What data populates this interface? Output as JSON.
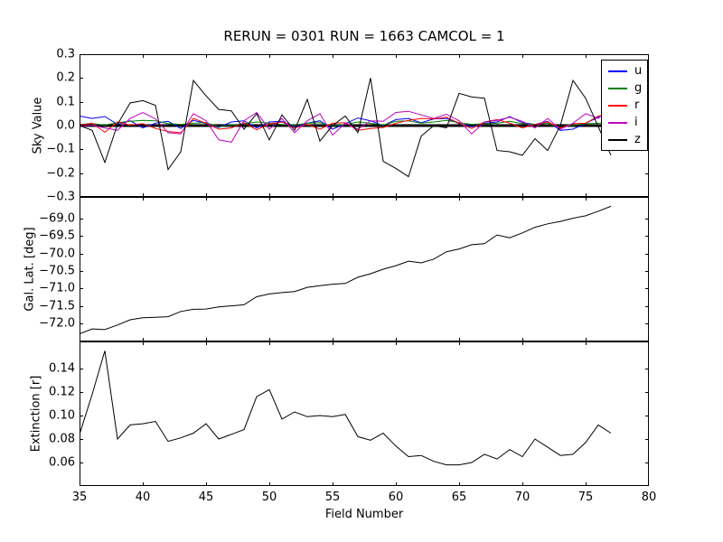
{
  "chart_data": {
    "type": "line",
    "title": "RERUN = 0301 RUN = 1663 CAMCOL = 1",
    "xlabel": "Field Number",
    "xlim": [
      35,
      80
    ],
    "x_ticks": [
      35,
      40,
      45,
      50,
      55,
      60,
      65,
      70,
      75,
      80
    ],
    "grid": false,
    "x": [
      35,
      36,
      37,
      38,
      39,
      40,
      41,
      42,
      43,
      44,
      45,
      46,
      47,
      48,
      49,
      50,
      51,
      52,
      53,
      54,
      55,
      56,
      57,
      58,
      59,
      60,
      61,
      62,
      63,
      64,
      65,
      66,
      67,
      68,
      69,
      70,
      71,
      72,
      73,
      74,
      75,
      76,
      77
    ],
    "panels": [
      {
        "id": "sky",
        "ylabel": "Sky Value",
        "ylim": [
          -0.3,
          0.3
        ],
        "yticks": [
          0.3,
          0.2,
          0.1,
          0.0,
          -0.1,
          -0.2,
          -0.3
        ],
        "ytick_decimals": 1,
        "legend_position": "upper right",
        "axhline": {
          "y": 0,
          "x_start": 35,
          "x_end": 77,
          "color": "#000000",
          "linewidth": 3
        },
        "series": [
          {
            "name": "u",
            "color": "#0000ff",
            "values": [
              0.04,
              0.03,
              0.038,
              0.005,
              0.02,
              -0.01,
              0.01,
              0.018,
              -0.012,
              0.022,
              0.008,
              -0.008,
              0.015,
              0.02,
              -0.01,
              0.015,
              0.018,
              -0.005,
              0.01,
              0.02,
              -0.015,
              0.008,
              0.032,
              0.02,
              0.0,
              0.025,
              0.03,
              0.012,
              0.028,
              0.03,
              0.008,
              -0.005,
              0.01,
              0.015,
              0.038,
              0.012,
              0.005,
              0.018,
              -0.02,
              -0.015,
              0.01,
              0.035,
              0.06
            ]
          },
          {
            "name": "g",
            "color": "#008000",
            "values": [
              0.005,
              0.008,
              0.002,
              0.012,
              0.018,
              0.022,
              0.02,
              0.008,
              0.005,
              0.01,
              0.012,
              -0.005,
              0.002,
              0.008,
              0.015,
              0.01,
              0.005,
              0.002,
              0.01,
              0.012,
              -0.002,
              0.005,
              0.015,
              0.01,
              0.002,
              0.018,
              0.02,
              0.01,
              0.015,
              0.022,
              0.012,
              0.005,
              0.008,
              0.01,
              0.018,
              0.008,
              0.004,
              0.01,
              -0.008,
              0.002,
              0.008,
              0.01,
              0.012
            ]
          },
          {
            "name": "r",
            "color": "#ff0000",
            "values": [
              0.003,
              0.01,
              -0.028,
              0.015,
              0.002,
              0.008,
              -0.012,
              -0.025,
              -0.03,
              0.03,
              0.01,
              -0.015,
              -0.01,
              0.012,
              -0.018,
              0.008,
              0.015,
              -0.01,
              0.005,
              -0.015,
              0.01,
              0.012,
              -0.02,
              -0.012,
              -0.008,
              0.01,
              0.022,
              0.03,
              0.028,
              0.035,
              0.01,
              -0.012,
              0.015,
              0.025,
              0.01,
              -0.01,
              0.005,
              0.015,
              -0.01,
              0.008,
              0.01,
              0.04,
              0.045
            ]
          },
          {
            "name": "i",
            "color": "#bf00bf",
            "values": [
              -0.005,
              0.002,
              -0.01,
              -0.02,
              0.03,
              0.055,
              0.028,
              -0.03,
              -0.035,
              0.05,
              0.02,
              -0.06,
              -0.07,
              0.02,
              0.055,
              -0.015,
              0.03,
              -0.03,
              0.02,
              0.05,
              -0.04,
              0.01,
              -0.015,
              0.02,
              0.018,
              0.055,
              0.06,
              0.045,
              0.03,
              0.048,
              0.02,
              -0.035,
              0.015,
              0.022,
              0.035,
              0.018,
              -0.01,
              0.03,
              -0.015,
              0.01,
              0.05,
              0.03,
              0.08
            ]
          },
          {
            "name": "z",
            "color": "#000000",
            "values": [
              0.0,
              -0.02,
              -0.155,
              0.005,
              0.095,
              0.105,
              0.085,
              -0.185,
              -0.11,
              0.19,
              0.125,
              0.068,
              0.062,
              -0.015,
              0.05,
              -0.06,
              0.045,
              -0.02,
              0.11,
              -0.065,
              0.0,
              0.04,
              -0.03,
              0.2,
              -0.15,
              -0.18,
              -0.215,
              -0.045,
              0.0,
              -0.01,
              0.135,
              0.12,
              0.115,
              -0.105,
              -0.11,
              -0.125,
              -0.055,
              -0.105,
              0.0,
              0.19,
              0.115,
              -0.005,
              -0.125
            ]
          }
        ]
      },
      {
        "id": "gal-lat",
        "ylabel": "Gal. Lat. [deg]",
        "ylim": [
          -72.52,
          -68.38
        ],
        "yticks": [
          -69.0,
          -69.5,
          -70.0,
          -70.5,
          -71.0,
          -71.5,
          -72.0
        ],
        "ytick_decimals": 1,
        "series": [
          {
            "name": "gal_lat",
            "color": "#000000",
            "values": [
              -72.3,
              -72.16,
              -72.18,
              -72.05,
              -71.9,
              -71.84,
              -71.83,
              -71.81,
              -71.66,
              -71.6,
              -71.59,
              -71.53,
              -71.5,
              -71.47,
              -71.24,
              -71.16,
              -71.12,
              -71.09,
              -70.97,
              -70.92,
              -70.88,
              -70.86,
              -70.68,
              -70.58,
              -70.45,
              -70.35,
              -70.22,
              -70.27,
              -70.16,
              -69.95,
              -69.87,
              -69.75,
              -69.72,
              -69.47,
              -69.55,
              -69.41,
              -69.25,
              -69.15,
              -69.08,
              -68.99,
              -68.92,
              -68.79,
              -68.65
            ]
          }
        ]
      },
      {
        "id": "extinction",
        "ylabel": "Extinction [r]",
        "ylim": [
          0.04,
          0.163
        ],
        "yticks": [
          0.14,
          0.12,
          0.1,
          0.08,
          0.06
        ],
        "ytick_decimals": 2,
        "series": [
          {
            "name": "extinction_r",
            "color": "#000000",
            "values": [
              0.084,
              0.118,
              0.155,
              0.08,
              0.092,
              0.093,
              0.095,
              0.078,
              0.081,
              0.085,
              0.093,
              0.08,
              0.084,
              0.088,
              0.116,
              0.122,
              0.097,
              0.103,
              0.099,
              0.1,
              0.099,
              0.101,
              0.082,
              0.079,
              0.085,
              0.074,
              0.065,
              0.066,
              0.061,
              0.058,
              0.058,
              0.06,
              0.067,
              0.063,
              0.071,
              0.065,
              0.08,
              0.073,
              0.066,
              0.067,
              0.077,
              0.092,
              0.085
            ]
          }
        ]
      }
    ]
  }
}
